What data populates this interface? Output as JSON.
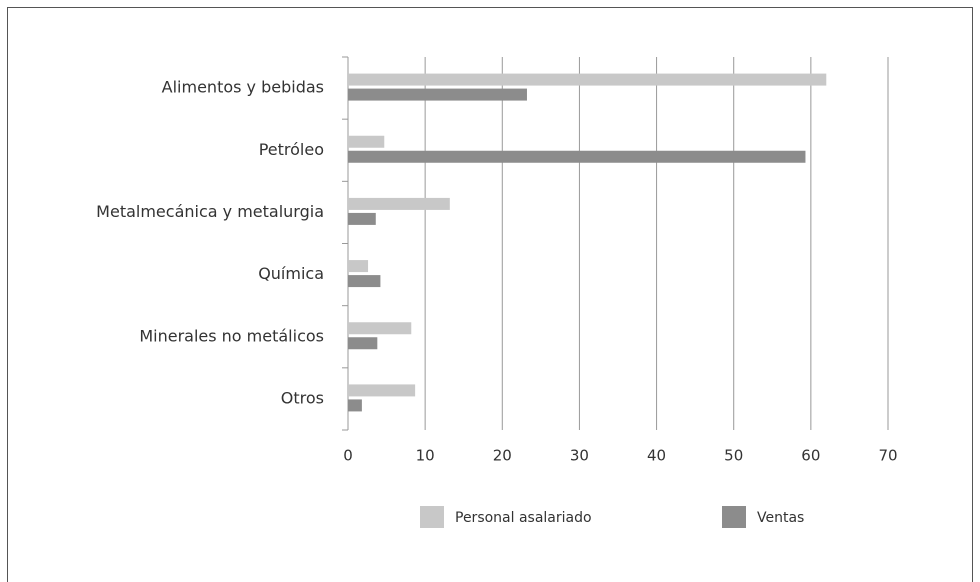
{
  "chart_data": {
    "type": "hbar",
    "categories": [
      "Alimentos y bebidas",
      "Petróleo",
      "Metalmecánica y metalurgia",
      "Química",
      "Minerales no metálicos",
      "Otros"
    ],
    "series": [
      {
        "name": "Personal asalariado",
        "color": "#c8c8c8",
        "values": [
          62,
          4.7,
          13.2,
          2.6,
          8.2,
          8.7
        ]
      },
      {
        "name": "Ventas",
        "color": "#8c8c8c",
        "values": [
          23.2,
          59.3,
          3.6,
          4.2,
          3.8,
          1.8
        ]
      }
    ],
    "xlim": [
      0,
      70
    ],
    "xticks": [
      0,
      10,
      20,
      30,
      40,
      50,
      60,
      70
    ],
    "grid": true
  }
}
